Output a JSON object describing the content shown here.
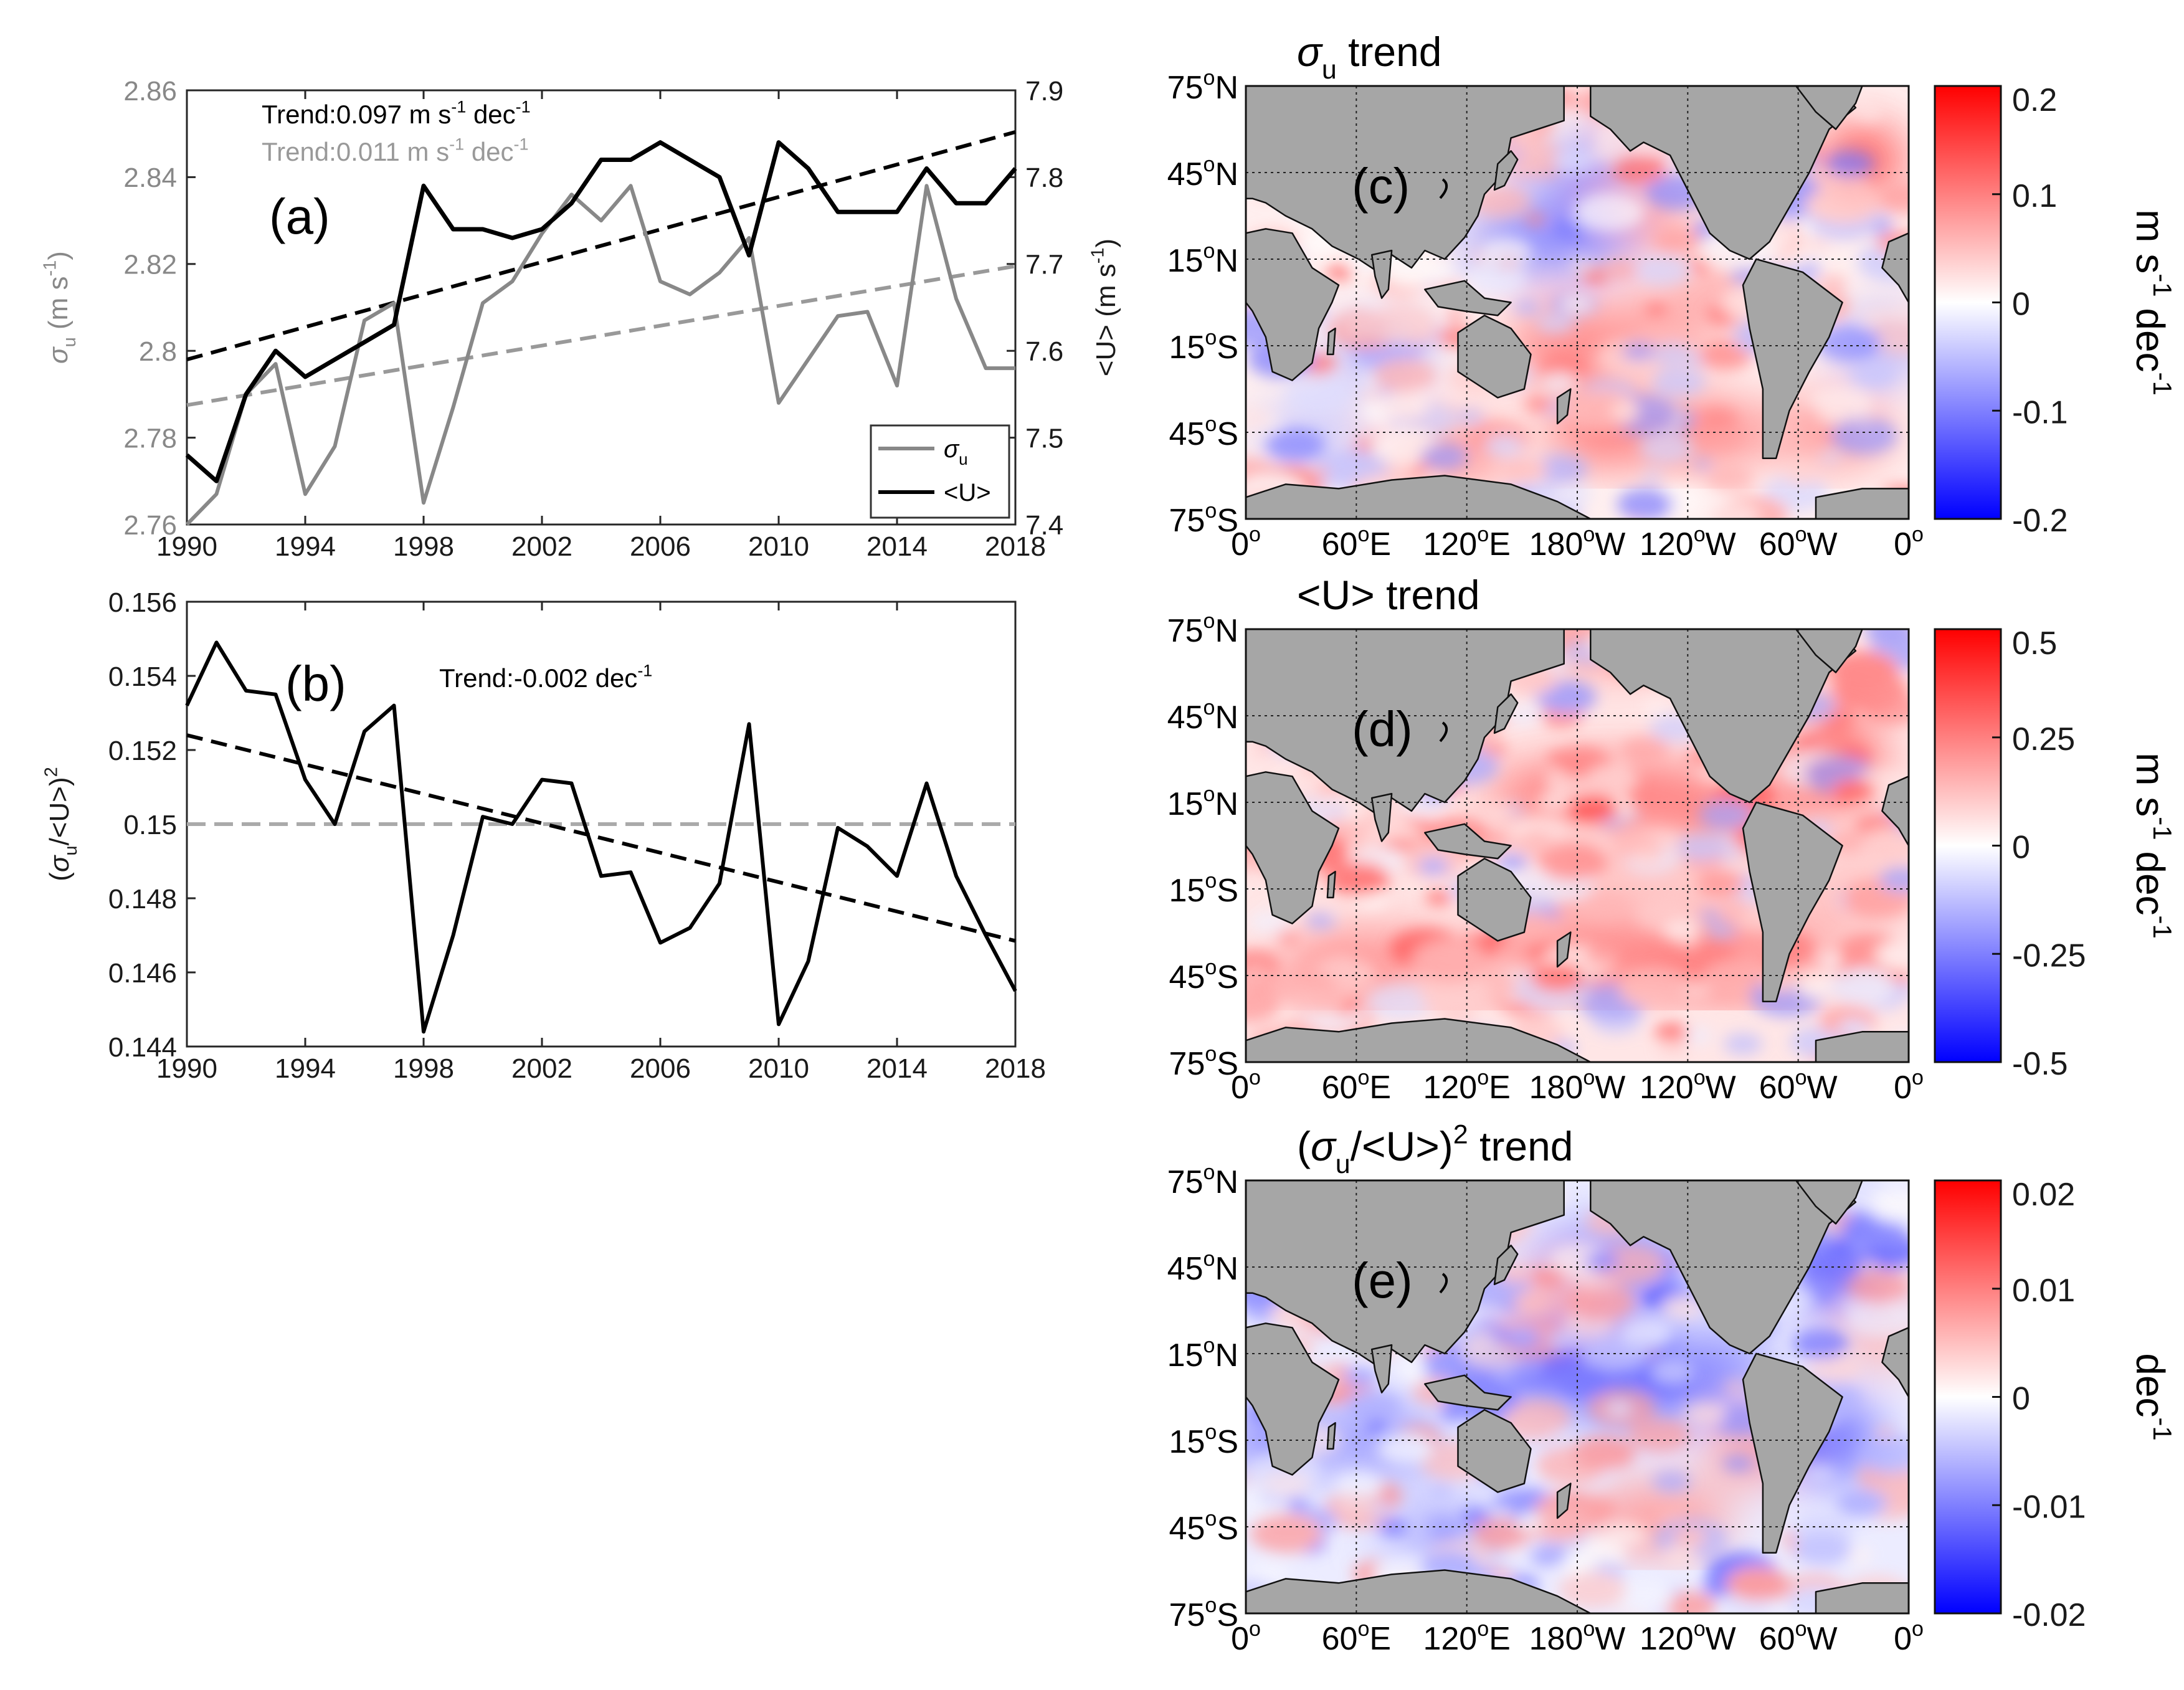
{
  "chart_data": [
    {
      "id": "a",
      "type": "line",
      "panel_label": "(a)",
      "title": "",
      "x": [
        1990,
        1991,
        1992,
        1993,
        1994,
        1995,
        1996,
        1997,
        1998,
        1999,
        2000,
        2001,
        2002,
        2003,
        2004,
        2005,
        2006,
        2007,
        2008,
        2009,
        2010,
        2011,
        2012,
        2013,
        2014,
        2015,
        2016,
        2017,
        2018
      ],
      "xticks": [
        "1990",
        "1994",
        "1998",
        "2002",
        "2006",
        "2010",
        "2014",
        "2018"
      ],
      "xlim": [
        1990,
        2018
      ],
      "ylabel_left": "σu (m s-1)",
      "ylabel_left_parts": {
        "sym": "σ",
        "sub": "u",
        "unit": " (m s",
        "exp": "-1",
        "close": ")"
      },
      "ylim_left": [
        2.76,
        2.86
      ],
      "yticks_left": [
        "2.76",
        "2.78",
        "2.8",
        "2.82",
        "2.84",
        "2.86"
      ],
      "ylabel_right": "<U> (m s-1)",
      "ylabel_right_parts": {
        "main": "<U> (m s",
        "exp": "-1",
        "close": ")"
      },
      "ylim_right": [
        7.4,
        7.9
      ],
      "yticks_right": [
        "7.4",
        "7.5",
        "7.6",
        "7.7",
        "7.8",
        "7.9"
      ],
      "series": [
        {
          "name": "σu",
          "axis": "left",
          "color": "#888888",
          "values": [
            2.76,
            2.767,
            2.79,
            2.797,
            2.767,
            2.778,
            2.807,
            2.811,
            2.765,
            2.787,
            2.811,
            2.816,
            2.827,
            2.836,
            2.83,
            2.838,
            2.816,
            2.813,
            2.818,
            2.826,
            2.788,
            2.798,
            2.808,
            2.809,
            2.792,
            2.838,
            2.812,
            2.796,
            2.796
          ]
        },
        {
          "name": "<U>",
          "axis": "right",
          "color": "#000000",
          "values": [
            7.48,
            7.45,
            7.55,
            7.6,
            7.57,
            7.59,
            7.61,
            7.63,
            7.79,
            7.74,
            7.74,
            7.73,
            7.74,
            7.77,
            7.82,
            7.82,
            7.84,
            7.82,
            7.8,
            7.71,
            7.84,
            7.81,
            7.76,
            7.76,
            7.76,
            7.81,
            7.77,
            7.77,
            7.81
          ]
        }
      ],
      "trendlines": [
        {
          "axis": "right",
          "color": "#000000",
          "from": [
            1990,
            7.59
          ],
          "to": [
            2018,
            7.852
          ]
        },
        {
          "axis": "left",
          "color": "#999999",
          "from": [
            1990,
            2.7875
          ],
          "to": [
            2018,
            2.8195
          ]
        }
      ],
      "annotations": [
        {
          "text": "Trend:0.097 m s",
          "exp": "-1",
          "tail": " dec",
          "exp2": "-1",
          "color": "#000000"
        },
        {
          "text": "Trend:0.011 m s",
          "exp": "-1",
          "tail": " dec",
          "exp2": "-1",
          "color": "#999999"
        }
      ],
      "legend": {
        "position": "bottom-right",
        "entries": [
          {
            "sym": "σ",
            "sub": "u",
            "color": "#888888"
          },
          {
            "label": "<U>",
            "color": "#000000"
          }
        ]
      }
    },
    {
      "id": "b",
      "type": "line",
      "panel_label": "(b)",
      "x": [
        1990,
        1991,
        1992,
        1993,
        1994,
        1995,
        1996,
        1997,
        1998,
        1999,
        2000,
        2001,
        2002,
        2003,
        2004,
        2005,
        2006,
        2007,
        2008,
        2009,
        2010,
        2011,
        2012,
        2013,
        2014,
        2015,
        2016,
        2017,
        2018
      ],
      "xticks": [
        "1990",
        "1994",
        "1998",
        "2002",
        "2006",
        "2010",
        "2014",
        "2018"
      ],
      "xlim": [
        1990,
        2018
      ],
      "ylabel_parts": {
        "open": "(σ",
        "sub": "u",
        "mid": "/<U>)",
        "exp": "2"
      },
      "ylim": [
        0.144,
        0.156
      ],
      "yticks": [
        "0.144",
        "0.146",
        "0.148",
        "0.15",
        "0.152",
        "0.154",
        "0.156"
      ],
      "series": [
        {
          "name": "(σu/<U>)²",
          "color": "#000000",
          "values": [
            0.1532,
            0.1549,
            0.1536,
            0.1535,
            0.1512,
            0.15,
            0.1525,
            0.1532,
            0.1444,
            0.147,
            0.1502,
            0.15,
            0.1512,
            0.1511,
            0.1486,
            0.1487,
            0.1468,
            0.1472,
            0.1484,
            0.1527,
            0.1446,
            0.1463,
            0.1499,
            0.1494,
            0.1486,
            0.1511,
            0.1486,
            0.147,
            0.1455
          ]
        }
      ],
      "trendlines": [
        {
          "color": "#000000",
          "from": [
            1990,
            0.1524
          ],
          "to": [
            2018,
            0.14685
          ]
        }
      ],
      "reference_line": {
        "value": 0.15,
        "color": "#aaaaaa"
      },
      "annotation": {
        "text": "Trend:-0.002 dec",
        "exp": "-1"
      }
    },
    {
      "id": "c",
      "type": "heatmap",
      "panel_label": "(c)",
      "title_parts": {
        "sym": "σ",
        "sub": "u",
        "tail": " trend"
      },
      "colorbar": {
        "min": -0.2,
        "max": 0.2,
        "ticks": [
          "-0.2",
          "-0.1",
          "0",
          "0.1",
          "0.2"
        ],
        "label": "m s-1 dec-1",
        "label_parts": [
          {
            "t": "m s",
            "e": "-1"
          },
          {
            "t": " dec",
            "e": "-1"
          }
        ]
      },
      "bias": 0.25
    },
    {
      "id": "d",
      "type": "heatmap",
      "panel_label": "(d)",
      "title_parts": {
        "tail": "<U> trend"
      },
      "colorbar": {
        "min": -0.5,
        "max": 0.5,
        "ticks": [
          "-0.5",
          "-0.25",
          "0",
          "0.25",
          "0.5"
        ],
        "label": "m s-1 dec-1",
        "label_parts": [
          {
            "t": "m s",
            "e": "-1"
          },
          {
            "t": " dec",
            "e": "-1"
          }
        ]
      },
      "bias": 0.4
    },
    {
      "id": "e",
      "type": "heatmap",
      "panel_label": "(e)",
      "title_parts": {
        "open": "(σ",
        "sub": "u",
        "mid": "/<U>)",
        "exp": "2",
        "tail": " trend"
      },
      "colorbar": {
        "min": -0.02,
        "max": 0.02,
        "ticks": [
          "-0.02",
          "-0.01",
          "0",
          "0.01",
          "0.02"
        ],
        "label": "dec-1",
        "label_parts": [
          {
            "t": "dec",
            "e": "-1"
          }
        ]
      },
      "bias": -0.3
    }
  ],
  "map_axes": {
    "lat_ticks": [
      {
        "n": "75",
        "h": "N"
      },
      {
        "n": "45",
        "h": "N"
      },
      {
        "n": "15",
        "h": "N"
      },
      {
        "n": "15",
        "h": "S"
      },
      {
        "n": "45",
        "h": "S"
      },
      {
        "n": "75",
        "h": "S"
      }
    ],
    "lon_ticks": [
      {
        "n": "0",
        "h": ""
      },
      {
        "n": "60",
        "h": "E"
      },
      {
        "n": "120",
        "h": "E"
      },
      {
        "n": "180",
        "h": "W"
      },
      {
        "n": "120",
        "h": "W"
      },
      {
        "n": "60",
        "h": "W"
      },
      {
        "n": "0",
        "h": ""
      }
    ],
    "degree": "o"
  },
  "colors": {
    "positive": "#ff0000",
    "negative": "#0000ff",
    "land": "#a6a6a6"
  }
}
